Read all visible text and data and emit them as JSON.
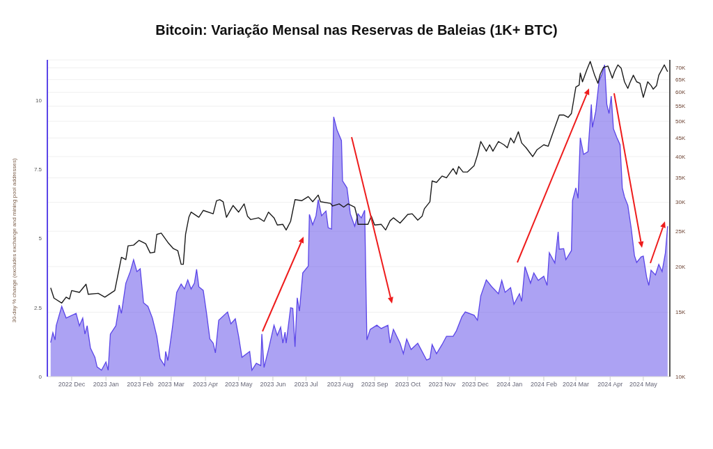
{
  "chart_data": {
    "type": "area",
    "title": "Bitcoin: Variação Mensal nas Reservas de Baleias (1K+ BTC)",
    "ylabel": "30-day % change (excludes exchange and mining pool addresses)",
    "xlim": [
      "2022-11-09",
      "2024-05-25"
    ],
    "xticks": [
      {
        "value": "2022-12",
        "label": "2022 Dec"
      },
      {
        "value": "2023-01",
        "label": "2023 Jan"
      },
      {
        "value": "2023-02",
        "label": "2023 Feb"
      },
      {
        "value": "2023-03",
        "label": "2023 Mar"
      },
      {
        "value": "2023-04",
        "label": "2023 Apr"
      },
      {
        "value": "2023-05",
        "label": "2023 May"
      },
      {
        "value": "2023-06",
        "label": "2023 Jun"
      },
      {
        "value": "2023-07",
        "label": "2023 Jul"
      },
      {
        "value": "2023-08",
        "label": "2023 Aug"
      },
      {
        "value": "2023-09",
        "label": "2023 Sep"
      },
      {
        "value": "2023-10",
        "label": "2023 Oct"
      },
      {
        "value": "2023-11",
        "label": "2023 Nov"
      },
      {
        "value": "2023-12",
        "label": "2023 Dec"
      },
      {
        "value": "2024-01",
        "label": "2024 Jan"
      },
      {
        "value": "2024-02",
        "label": "2024 Feb"
      },
      {
        "value": "2024-03",
        "label": "2024 Mar"
      },
      {
        "value": "2024-04",
        "label": "2024 Apr"
      },
      {
        "value": "2024-05",
        "label": "2024 May"
      }
    ],
    "ylim": [
      0,
      11.46
    ],
    "yticks": [
      0,
      2.5,
      5,
      7.5,
      10
    ],
    "y2lim": [
      10000,
      73600
    ],
    "y2ticks": [
      {
        "value": 10000,
        "label": "10K"
      },
      {
        "value": 15000,
        "label": "15K"
      },
      {
        "value": 20000,
        "label": "20K"
      },
      {
        "value": 25000,
        "label": "25K"
      },
      {
        "value": 30000,
        "label": "30K"
      },
      {
        "value": 35000,
        "label": "35K"
      },
      {
        "value": 40000,
        "label": "40K"
      },
      {
        "value": 45000,
        "label": "45K"
      },
      {
        "value": 50000,
        "label": "50K"
      },
      {
        "value": 55000,
        "label": "55K"
      },
      {
        "value": 60000,
        "label": "60K"
      },
      {
        "value": 65000,
        "label": "65K"
      },
      {
        "value": 70000,
        "label": "70K"
      }
    ],
    "log": "y2",
    "grid": "y",
    "legend": false,
    "series": [
      {
        "axis": "y",
        "color": "#5a45e8",
        "x": [
          "2022-11-12",
          "2022-11-14",
          "2022-11-16",
          "2022-11-17",
          "2022-11-22",
          "2022-11-26",
          "2022-12-05",
          "2022-12-08",
          "2022-12-11",
          "2022-12-13",
          "2022-12-15",
          "2022-12-18",
          "2022-12-22",
          "2022-12-24",
          "2022-12-28",
          "2023-01-01",
          "2023-01-03",
          "2023-01-05",
          "2023-01-10",
          "2023-01-13",
          "2023-01-15",
          "2023-01-19",
          "2023-01-23",
          "2023-01-26",
          "2023-01-29",
          "2023-02-01",
          "2023-02-04",
          "2023-02-08",
          "2023-02-12",
          "2023-02-16",
          "2023-02-19",
          "2023-02-23",
          "2023-02-24",
          "2023-02-26",
          "2023-03-02",
          "2023-03-06",
          "2023-03-10",
          "2023-03-13",
          "2023-03-16",
          "2023-03-19",
          "2023-03-22",
          "2023-03-24",
          "2023-03-26",
          "2023-03-30",
          "2023-04-02",
          "2023-04-05",
          "2023-04-08",
          "2023-04-10",
          "2023-04-13",
          "2023-04-21",
          "2023-04-24",
          "2023-04-28",
          "2023-05-01",
          "2023-05-04",
          "2023-05-11",
          "2023-05-13",
          "2023-05-17",
          "2023-05-21",
          "2023-05-22",
          "2023-05-24",
          "2023-05-28",
          "2023-06-02",
          "2023-06-05",
          "2023-06-08",
          "2023-06-10",
          "2023-06-12",
          "2023-06-13",
          "2023-06-17",
          "2023-06-19",
          "2023-06-21",
          "2023-06-23",
          "2023-06-25",
          "2023-06-28",
          "2023-07-03",
          "2023-07-04",
          "2023-07-07",
          "2023-07-10",
          "2023-07-12",
          "2023-07-15",
          "2023-07-19",
          "2023-07-21",
          "2023-07-24",
          "2023-07-26",
          "2023-07-29",
          "2023-08-02",
          "2023-08-03",
          "2023-08-07",
          "2023-08-10",
          "2023-08-14",
          "2023-08-17",
          "2023-08-20",
          "2023-08-23",
          "2023-08-25",
          "2023-08-28",
          "2023-09-03",
          "2023-09-07",
          "2023-09-13",
          "2023-09-15",
          "2023-09-18",
          "2023-09-24",
          "2023-09-27",
          "2023-09-30",
          "2023-10-04",
          "2023-10-10",
          "2023-10-13",
          "2023-10-18",
          "2023-10-21",
          "2023-10-23",
          "2023-10-27",
          "2023-11-01",
          "2023-11-05",
          "2023-11-11",
          "2023-11-14",
          "2023-11-19",
          "2023-11-22",
          "2023-11-30",
          "2023-12-03",
          "2023-12-06",
          "2023-12-11",
          "2023-12-16",
          "2023-12-22",
          "2023-12-25",
          "2023-12-28",
          "2024-01-02",
          "2024-01-05",
          "2024-01-10",
          "2024-01-12",
          "2024-01-15",
          "2024-01-20",
          "2024-01-23",
          "2024-01-27",
          "2024-02-01",
          "2024-02-04",
          "2024-02-06",
          "2024-02-11",
          "2024-02-14",
          "2024-02-15",
          "2024-02-19",
          "2024-02-21",
          "2024-02-26",
          "2024-02-27",
          "2024-03-01",
          "2024-03-03",
          "2024-03-05",
          "2024-03-08",
          "2024-03-12",
          "2024-03-15",
          "2024-03-16",
          "2024-03-19",
          "2024-03-22",
          "2024-03-25",
          "2024-03-27",
          "2024-03-29",
          "2024-03-31",
          "2024-04-02",
          "2024-04-04",
          "2024-04-07",
          "2024-04-10",
          "2024-04-12",
          "2024-04-14",
          "2024-04-17",
          "2024-04-20",
          "2024-04-23",
          "2024-04-25",
          "2024-04-29",
          "2024-05-01",
          "2024-05-04",
          "2024-05-06",
          "2024-05-08",
          "2024-05-12",
          "2024-05-15",
          "2024-05-18",
          "2024-05-21",
          "2024-05-23"
        ],
        "values": [
          1.23,
          1.59,
          1.33,
          1.84,
          2.54,
          2.12,
          2.29,
          1.84,
          2.12,
          1.54,
          1.84,
          1.03,
          0.7,
          0.35,
          0.23,
          0.53,
          0.23,
          1.54,
          1.84,
          2.59,
          2.29,
          3.38,
          3.8,
          4.23,
          3.8,
          3.9,
          2.67,
          2.54,
          2.12,
          1.46,
          0.65,
          0.4,
          0.91,
          0.58,
          1.74,
          3.05,
          3.35,
          3.17,
          3.5,
          3.17,
          3.38,
          3.88,
          3.25,
          3.12,
          2.29,
          1.36,
          1.21,
          0.86,
          2.04,
          2.34,
          1.91,
          2.09,
          1.46,
          0.7,
          0.91,
          0.23,
          0.48,
          0.4,
          1.54,
          0.33,
          0.98,
          1.86,
          1.49,
          1.79,
          1.21,
          1.61,
          1.21,
          2.49,
          2.47,
          1.08,
          2.85,
          2.37,
          3.75,
          4.0,
          5.87,
          5.49,
          5.82,
          6.4,
          5.82,
          5.99,
          5.39,
          5.34,
          9.4,
          8.92,
          8.54,
          7.08,
          6.83,
          5.89,
          5.44,
          5.89,
          5.74,
          6.02,
          1.33,
          1.71,
          1.86,
          1.74,
          1.86,
          1.21,
          1.71,
          1.21,
          0.83,
          1.36,
          0.98,
          1.21,
          0.98,
          0.6,
          0.65,
          1.16,
          0.83,
          1.16,
          1.46,
          1.46,
          1.66,
          2.17,
          2.34,
          2.22,
          2.04,
          2.92,
          3.5,
          3.25,
          3.0,
          3.48,
          3.05,
          3.22,
          2.62,
          3.0,
          2.72,
          3.98,
          3.38,
          3.75,
          3.48,
          3.63,
          3.3,
          4.48,
          4.11,
          5.24,
          4.61,
          4.63,
          4.23,
          4.56,
          6.37,
          6.83,
          6.45,
          8.64,
          8.04,
          8.14,
          9.85,
          9.02,
          9.6,
          10.68,
          10.98,
          11.28,
          9.85,
          9.52,
          10.15,
          8.97,
          8.66,
          8.39,
          6.83,
          6.5,
          6.2,
          5.39,
          4.38,
          4.13,
          4.33,
          4.36,
          3.6,
          3.3,
          3.85,
          3.68,
          4.06,
          3.8,
          4.48,
          5.44
        ]
      },
      {
        "type": "line",
        "axis": "y2",
        "color": "#1a1a1a",
        "x": [
          "2022-11-12",
          "2022-11-15",
          "2022-11-22",
          "2022-11-26",
          "2022-11-29",
          "2022-12-01",
          "2022-12-08",
          "2022-12-14",
          "2022-12-16",
          "2022-12-25",
          "2022-12-31",
          "2023-01-09",
          "2023-01-12",
          "2023-01-15",
          "2023-01-19",
          "2023-01-21",
          "2023-01-26",
          "2023-01-31",
          "2023-02-06",
          "2023-02-10",
          "2023-02-14",
          "2023-02-16",
          "2023-02-20",
          "2023-02-26",
          "2023-03-03",
          "2023-03-07",
          "2023-03-10",
          "2023-03-12",
          "2023-03-14",
          "2023-03-17",
          "2023-03-19",
          "2023-03-26",
          "2023-03-30",
          "2023-04-08",
          "2023-04-11",
          "2023-04-14",
          "2023-04-17",
          "2023-04-20",
          "2023-04-26",
          "2023-05-01",
          "2023-05-06",
          "2023-05-09",
          "2023-05-12",
          "2023-05-19",
          "2023-05-24",
          "2023-05-28",
          "2023-06-02",
          "2023-06-05",
          "2023-06-10",
          "2023-06-13",
          "2023-06-17",
          "2023-06-21",
          "2023-06-27",
          "2023-07-03",
          "2023-07-07",
          "2023-07-12",
          "2023-07-14",
          "2023-07-23",
          "2023-07-25",
          "2023-07-31",
          "2023-08-04",
          "2023-08-08",
          "2023-08-14",
          "2023-08-16",
          "2023-08-17",
          "2023-08-26",
          "2023-08-29",
          "2023-09-01",
          "2023-09-07",
          "2023-09-11",
          "2023-09-15",
          "2023-09-18",
          "2023-09-24",
          "2023-10-01",
          "2023-10-05",
          "2023-10-10",
          "2023-10-14",
          "2023-10-16",
          "2023-10-21",
          "2023-10-23",
          "2023-10-27",
          "2023-11-01",
          "2023-11-05",
          "2023-11-11",
          "2023-11-14",
          "2023-11-16",
          "2023-11-20",
          "2023-11-24",
          "2023-11-30",
          "2023-12-03",
          "2023-12-06",
          "2023-12-11",
          "2023-12-14",
          "2023-12-17",
          "2023-12-22",
          "2023-12-27",
          "2023-12-30",
          "2024-01-02",
          "2024-01-05",
          "2024-01-09",
          "2024-01-12",
          "2024-01-16",
          "2024-01-22",
          "2024-01-26",
          "2024-02-01",
          "2024-02-05",
          "2024-02-11",
          "2024-02-15",
          "2024-02-19",
          "2024-02-23",
          "2024-02-26",
          "2024-03-01",
          "2024-03-04",
          "2024-03-05",
          "2024-03-07",
          "2024-03-11",
          "2024-03-14",
          "2024-03-18",
          "2024-03-21",
          "2024-03-23",
          "2024-03-26",
          "2024-03-30",
          "2024-04-03",
          "2024-04-05",
          "2024-04-08",
          "2024-04-11",
          "2024-04-14",
          "2024-04-17",
          "2024-04-19",
          "2024-04-22",
          "2024-04-25",
          "2024-04-28",
          "2024-05-01",
          "2024-05-05",
          "2024-05-08",
          "2024-05-10",
          "2024-05-13",
          "2024-05-15",
          "2024-05-20",
          "2024-05-23"
        ],
        "values": [
          17500,
          16400,
          15900,
          16500,
          16300,
          17200,
          17000,
          17900,
          16800,
          16900,
          16500,
          17200,
          19100,
          21200,
          20900,
          22800,
          22900,
          23600,
          23100,
          21800,
          21900,
          24500,
          24700,
          23300,
          22400,
          22100,
          20300,
          20300,
          24500,
          27300,
          28200,
          27300,
          28500,
          27900,
          30300,
          30500,
          30100,
          27300,
          29400,
          28200,
          29700,
          27500,
          26900,
          27200,
          26600,
          28200,
          27200,
          26000,
          26100,
          25200,
          26600,
          30500,
          30300,
          31100,
          30100,
          31400,
          30100,
          29800,
          29300,
          29700,
          29100,
          29700,
          29100,
          27500,
          26100,
          26100,
          27500,
          26000,
          26100,
          25200,
          26700,
          27200,
          26300,
          27800,
          27900,
          26800,
          27500,
          28800,
          30100,
          34300,
          34000,
          35400,
          35000,
          37100,
          35800,
          37600,
          36300,
          36300,
          37800,
          40400,
          44000,
          41400,
          43100,
          41400,
          44000,
          43100,
          42300,
          45000,
          43600,
          46800,
          43600,
          42300,
          40000,
          41800,
          43100,
          42700,
          48100,
          52000,
          52000,
          51200,
          52500,
          62000,
          62800,
          67700,
          64100,
          69200,
          72900,
          66800,
          63500,
          67200,
          70200,
          70800,
          65600,
          68300,
          71300,
          69800,
          64100,
          61500,
          63800,
          66800,
          64100,
          63500,
          58100,
          64100,
          62600,
          61200,
          62600,
          66800,
          71300,
          68300
        ]
      }
    ]
  }
}
